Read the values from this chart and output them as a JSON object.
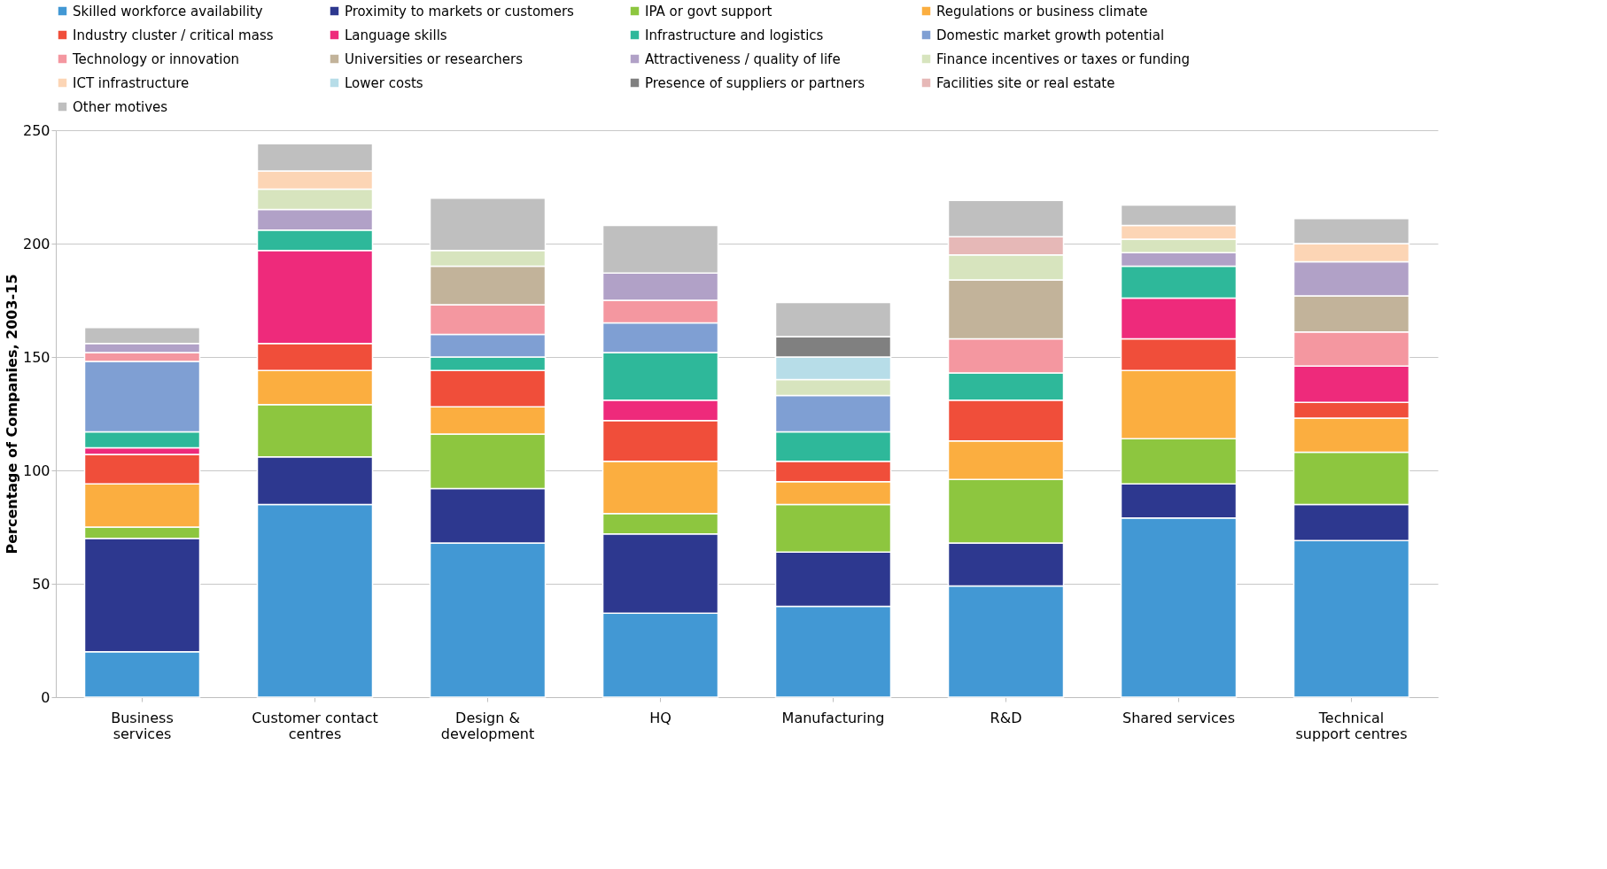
{
  "chart_data": {
    "type": "bar",
    "stacked": true,
    "ylabel": "Percentage of Companies, 2003-15",
    "categories": [
      "Business services",
      "Customer contact centres",
      "Design & development",
      "HQ",
      "Manufacturing",
      "R&D",
      "Shared services",
      "Technical support centres"
    ],
    "ylim": [
      0,
      250
    ],
    "yticks": [
      0,
      50,
      100,
      150,
      200,
      250
    ],
    "grid": "y",
    "legend": "top",
    "series": [
      {
        "name": "Skilled workforce availability",
        "color": "#4298d4",
        "values": [
          20,
          85,
          68,
          37,
          40,
          49,
          79,
          69
        ]
      },
      {
        "name": "Proximity to markets or customers",
        "color": "#2d388f",
        "values": [
          50,
          21,
          24,
          35,
          24,
          19,
          15,
          16
        ]
      },
      {
        "name": "IPA or govt support",
        "color": "#8dc63f",
        "values": [
          5,
          23,
          24,
          9,
          21,
          28,
          20,
          23
        ]
      },
      {
        "name": "Regulations or business climate",
        "color": "#fbae40",
        "values": [
          19,
          15,
          12,
          23,
          10,
          17,
          30,
          15
        ]
      },
      {
        "name": "Industry cluster / critical mass",
        "color": "#f04e3a",
        "values": [
          13,
          12,
          16,
          18,
          9,
          18,
          14,
          7
        ]
      },
      {
        "name": "Language skills",
        "color": "#ee2a7b",
        "values": [
          3,
          41,
          null,
          9,
          null,
          null,
          18,
          16
        ]
      },
      {
        "name": "Infrastructure and logistics",
        "color": "#2eb89a",
        "values": [
          7,
          9,
          6,
          21,
          13,
          12,
          14,
          null
        ]
      },
      {
        "name": "Domestic market growth potential",
        "color": "#7f9fd3",
        "values": [
          31,
          null,
          10,
          13,
          16,
          null,
          null,
          null
        ]
      },
      {
        "name": "Technology or innovation",
        "color": "#f497a0",
        "values": [
          4,
          null,
          13,
          10,
          null,
          15,
          null,
          15
        ]
      },
      {
        "name": "Universities or researchers",
        "color": "#c2b39a",
        "values": [
          null,
          null,
          17,
          null,
          null,
          26,
          null,
          16
        ]
      },
      {
        "name": "Attractiveness / quality of life",
        "color": "#b1a1c7",
        "values": [
          4,
          9,
          null,
          12,
          null,
          null,
          6,
          15
        ]
      },
      {
        "name": "Finance incentives or taxes or funding",
        "color": "#d7e4be",
        "values": [
          null,
          9,
          7,
          null,
          7,
          11,
          6,
          null
        ]
      },
      {
        "name": "ICT infrastructure",
        "color": "#fcd5b5",
        "values": [
          null,
          8,
          null,
          null,
          null,
          null,
          6,
          8
        ]
      },
      {
        "name": "Lower costs",
        "color": "#b7dde8",
        "values": [
          null,
          null,
          null,
          null,
          10,
          null,
          null,
          null
        ]
      },
      {
        "name": "Presence of suppliers or partners",
        "color": "#808080",
        "values": [
          null,
          null,
          null,
          null,
          9,
          null,
          null,
          null
        ]
      },
      {
        "name": "Facilities site or real estate",
        "color": "#e6b8b7",
        "values": [
          null,
          null,
          null,
          null,
          null,
          8,
          null,
          null
        ]
      },
      {
        "name": "Other motives",
        "color": "#bfbfbf",
        "values": [
          7,
          12,
          23,
          21,
          15,
          16,
          9,
          11
        ]
      }
    ]
  }
}
